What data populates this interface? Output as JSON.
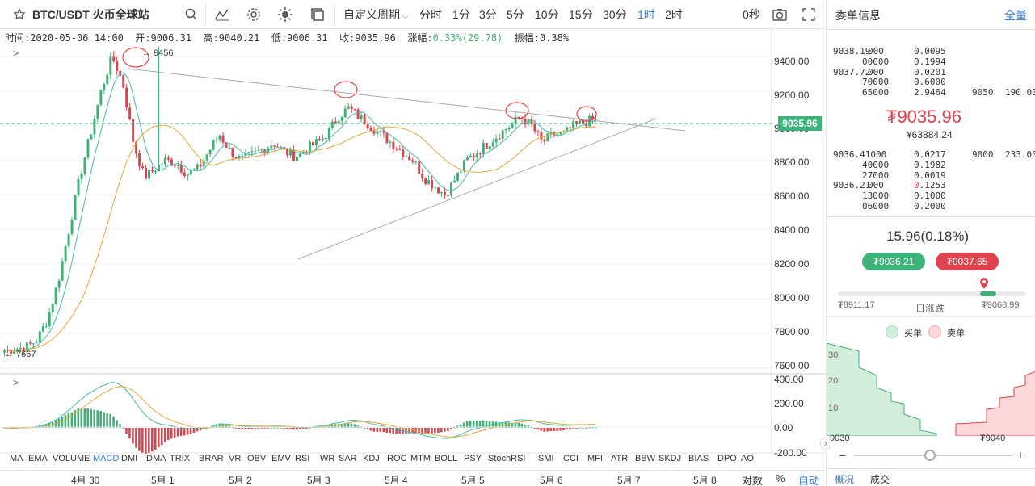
{
  "toolbar": {
    "symbol": "BTC/USDT 火币全球站",
    "custom_period": "自定义周期",
    "intervals": [
      "分时",
      "1分",
      "3分",
      "5分",
      "10分",
      "15分",
      "30分",
      "1时",
      "2时"
    ],
    "active_interval": "1时",
    "countdown": "0秒"
  },
  "info": {
    "time": "时间:2020-05-06 14:00",
    "open": "开:9006.31",
    "high": "高:9040.21",
    "low": "低:9006.31",
    "close": "收:9035.96",
    "change_label": "涨幅:",
    "change_value": "0.33%(29.78)",
    "amplitude": "振幅:0.38%"
  },
  "chart": {
    "y_ticks": [
      "9400.00",
      "9200.00",
      "9000.00",
      "8800.00",
      "8600.00",
      "8400.00",
      "8200.00",
      "8000.00",
      "7800.00",
      "7600.00"
    ],
    "current_price_label": "9035.96",
    "high_marker": "9456",
    "low_marker": "7667",
    "macd_ticks": [
      "400.00",
      "200.00",
      "0.00",
      "-200.00"
    ],
    "expand_main": ">",
    "expand_sub": ">",
    "colors": {
      "up": "#3db379",
      "down": "#e0434d",
      "ma_fast": "#48b8a9",
      "ma_slow": "#e0a93a"
    }
  },
  "chart_data": {
    "type": "candlestick",
    "symbol": "BTC/USDT",
    "interval": "1H",
    "x": [
      "4月 30",
      "5月 1",
      "5月 2",
      "5月 3",
      "5月 4",
      "5月 5",
      "5月 6",
      "5月 7",
      "5月 8"
    ],
    "ylim": [
      7580,
      9520
    ],
    "high": 9456,
    "low": 7667,
    "last": 9035.96,
    "approx_close_path": [
      7700,
      7710,
      7720,
      7760,
      7880,
      8100,
      8400,
      8700,
      8950,
      9200,
      9400,
      9250,
      8900,
      8700,
      8750,
      8800,
      8780,
      8720,
      8750,
      8850,
      8950,
      8850,
      8800,
      8830,
      8860,
      8900,
      8850,
      8820,
      8860,
      8900,
      8950,
      9050,
      9100,
      9050,
      9000,
      8950,
      8900,
      8850,
      8800,
      8700,
      8650,
      8600,
      8700,
      8800,
      8850,
      8900,
      8950,
      9000,
      9050,
      9000,
      8900,
      8950,
      8950,
      9000,
      9020,
      9036
    ],
    "macd_range": [
      -200,
      400
    ]
  },
  "indicators": [
    "MA",
    "EMA",
    "VOLUME",
    "MACD",
    "DMI",
    "DMA",
    "TRIX",
    "BRAR",
    "VR",
    "OBV",
    "EMV",
    "RSI",
    "WR",
    "SAR",
    "KDJ",
    "ROC",
    "MTM",
    "BOLL",
    "PSY",
    "StochRSI",
    "SMI",
    "CCI",
    "MFI",
    "ATR",
    "BBW",
    "SKDJ",
    "BIAS",
    "DPO",
    "AO"
  ],
  "active_indicator": "MACD",
  "dates": [
    "4月 30",
    "5月 1",
    "5月 2",
    "5月 3",
    "5月 4",
    "5月 5",
    "5月 6",
    "5月 7",
    "5月 8"
  ],
  "scale_options": [
    "对数",
    "%",
    "自动"
  ],
  "orderbook": {
    "title": "委单信息",
    "all": "全量",
    "asks": [
      {
        "price": "9038.19",
        "price_dim": "000",
        "amount": "0.0095",
        "amount_dim": "",
        "p2": "",
        "a2": ""
      },
      {
        "price": "",
        "price_dim": "00000",
        "amount": "0.1994",
        "amount_dim": "",
        "p2": "",
        "a2": ""
      },
      {
        "price": "9037.72",
        "price_dim": "000",
        "amount": "0.0201",
        "amount_dim": "",
        "p2": "",
        "a2": ""
      },
      {
        "price": "",
        "price_dim": "70000",
        "amount": "0.6000",
        "amount_dim": "",
        "p2": "",
        "a2": ""
      },
      {
        "price": "",
        "price_dim": "65000",
        "amount": "2.9464",
        "amount_dim": "",
        "p2": "9050",
        "a2": "190.00"
      }
    ],
    "last_price": "₮9035.96",
    "cny_price": "¥63884.24",
    "bids": [
      {
        "price": "",
        "price_dim": "9036.41000",
        "amount": "",
        "amount_dim": "0.0217",
        "p2": "9000",
        "a2": "233.00"
      },
      {
        "price": "",
        "price_dim": "40000",
        "amount": "",
        "amount_dim": "0.1982",
        "p2": "",
        "a2": ""
      },
      {
        "price": "",
        "price_dim": "27000",
        "amount": "",
        "amount_dim": "0.0019",
        "p2": "",
        "a2": ""
      },
      {
        "price": "9036.21",
        "price_dim": "000",
        "amount": "0.1253",
        "amount_dim": "",
        "p2": "",
        "a2": ""
      },
      {
        "price": "",
        "price_dim": "13000",
        "amount": "0.1000",
        "amount_dim": "",
        "p2": "",
        "a2": ""
      },
      {
        "price": "",
        "price_dim": "06000",
        "amount": "0.2000",
        "amount_dim": "",
        "p2": "",
        "a2": ""
      }
    ],
    "change": "15.96(0.18%)",
    "bid_button": "₮9036.21",
    "ask_button": "₮9037.65",
    "day_low": "₮8911.17",
    "day_range_label": "日涨跌",
    "day_high": "₮9068.99",
    "day_range_position": 0.85,
    "legend_buy": "买单",
    "legend_sell": "卖单",
    "depth_ticks": [
      "30",
      "20",
      "10"
    ],
    "depth_left": "9030",
    "depth_right": "₮9040",
    "zoom_minus": "–",
    "zoom_plus": "+",
    "tabs": [
      "概况",
      "成交"
    ]
  }
}
